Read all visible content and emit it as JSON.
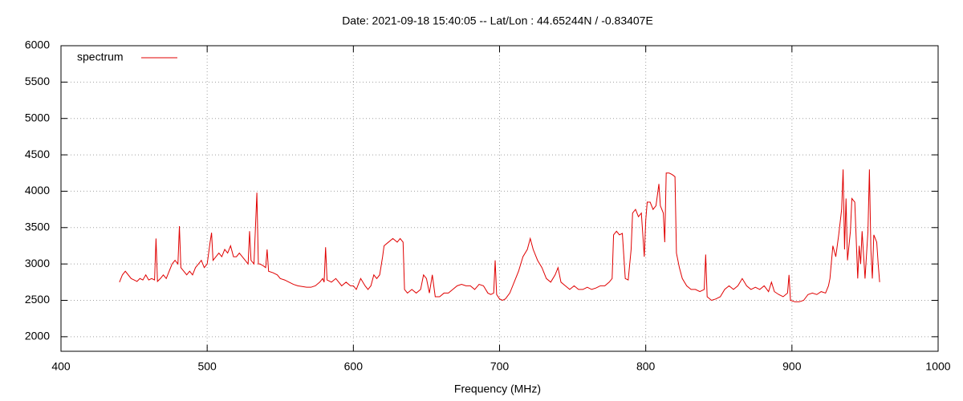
{
  "chart_data": {
    "type": "line",
    "title": "Date: 2021-09-18 15:40:05  --  Lat/Lon : 44.65244N / -0.83407E",
    "x_label": "Frequency (MHz)",
    "xlim": [
      400,
      1000
    ],
    "xticks": [
      400,
      500,
      600,
      700,
      800,
      900,
      1000
    ],
    "ylim": [
      1800,
      6000
    ],
    "yticks": [
      2000,
      2500,
      3000,
      3500,
      4000,
      4500,
      5000,
      5500,
      6000
    ],
    "grid": true,
    "legend": "top-left",
    "x": [
      440,
      442,
      444,
      446,
      448,
      450,
      452,
      454,
      456,
      458,
      460,
      462,
      464,
      465,
      466,
      468,
      470,
      472,
      474,
      476,
      478,
      480,
      481,
      482,
      484,
      486,
      488,
      490,
      492,
      494,
      496,
      498,
      500,
      502,
      503,
      504,
      506,
      508,
      510,
      512,
      514,
      516,
      518,
      520,
      522,
      524,
      526,
      528,
      529,
      530,
      532,
      534,
      535,
      536,
      538,
      540,
      541,
      542,
      545,
      548,
      550,
      553,
      556,
      559,
      562,
      565,
      568,
      571,
      574,
      577,
      579,
      580,
      581,
      582,
      585,
      588,
      590,
      592,
      595,
      598,
      600,
      602,
      605,
      608,
      610,
      612,
      614,
      616,
      618,
      620,
      621,
      624,
      627,
      630,
      632,
      634,
      635,
      637,
      640,
      643,
      646,
      648,
      650,
      652,
      654,
      656,
      659,
      662,
      665,
      668,
      671,
      674,
      677,
      680,
      683,
      686,
      689,
      692,
      694,
      696,
      697,
      698,
      700,
      702,
      704,
      707,
      710,
      713,
      716,
      719,
      721,
      723,
      726,
      729,
      732,
      735,
      738,
      740,
      742,
      745,
      748,
      751,
      754,
      757,
      760,
      763,
      766,
      769,
      772,
      775,
      777,
      778,
      780,
      782,
      784,
      786,
      788,
      790,
      791,
      793,
      795,
      797,
      799,
      800,
      801,
      803,
      805,
      807,
      809,
      810,
      812,
      813,
      814,
      816,
      818,
      820,
      821,
      823,
      825,
      828,
      831,
      834,
      837,
      840,
      841,
      842,
      845,
      848,
      851,
      854,
      857,
      860,
      863,
      866,
      869,
      872,
      875,
      878,
      881,
      884,
      886,
      888,
      891,
      894,
      897,
      898,
      899,
      902,
      905,
      908,
      911,
      914,
      917,
      920,
      923,
      925,
      926,
      928,
      930,
      932,
      934,
      935,
      936,
      937,
      938,
      940,
      941,
      943,
      945,
      946,
      947,
      948,
      950,
      952,
      953,
      954,
      955,
      956,
      958,
      959,
      960
    ],
    "series": [
      {
        "name": "spectrum",
        "color": "#e00000",
        "values": [
          2750,
          2850,
          2900,
          2850,
          2800,
          2780,
          2760,
          2800,
          2780,
          2850,
          2780,
          2800,
          2780,
          3350,
          2760,
          2800,
          2850,
          2800,
          2900,
          3000,
          3050,
          3000,
          3520,
          2950,
          2900,
          2850,
          2900,
          2850,
          2950,
          3000,
          3050,
          2950,
          3000,
          3300,
          3430,
          3050,
          3100,
          3150,
          3100,
          3200,
          3150,
          3250,
          3100,
          3100,
          3150,
          3100,
          3050,
          3000,
          3450,
          3050,
          3000,
          3980,
          3000,
          3000,
          2980,
          2950,
          3200,
          2900,
          2880,
          2850,
          2800,
          2780,
          2750,
          2720,
          2700,
          2690,
          2680,
          2680,
          2700,
          2750,
          2800,
          2750,
          3230,
          2780,
          2750,
          2800,
          2750,
          2700,
          2750,
          2700,
          2700,
          2650,
          2800,
          2700,
          2650,
          2700,
          2850,
          2800,
          2850,
          3100,
          3250,
          3300,
          3350,
          3300,
          3350,
          3300,
          2650,
          2600,
          2650,
          2600,
          2650,
          2850,
          2800,
          2600,
          2850,
          2550,
          2550,
          2600,
          2600,
          2650,
          2700,
          2720,
          2700,
          2700,
          2650,
          2720,
          2700,
          2600,
          2580,
          2600,
          3050,
          2580,
          2520,
          2500,
          2520,
          2600,
          2750,
          2900,
          3100,
          3200,
          3350,
          3200,
          3050,
          2950,
          2800,
          2750,
          2850,
          2950,
          2750,
          2700,
          2650,
          2700,
          2650,
          2650,
          2680,
          2650,
          2670,
          2700,
          2700,
          2750,
          2800,
          3400,
          3450,
          3400,
          3420,
          2800,
          2780,
          3200,
          3700,
          3750,
          3650,
          3700,
          3100,
          3600,
          3850,
          3850,
          3750,
          3800,
          4100,
          3800,
          3700,
          3300,
          4250,
          4250,
          4230,
          4200,
          3150,
          2950,
          2800,
          2700,
          2650,
          2650,
          2620,
          2650,
          3130,
          2550,
          2500,
          2520,
          2550,
          2650,
          2700,
          2650,
          2700,
          2800,
          2700,
          2650,
          2680,
          2650,
          2700,
          2620,
          2750,
          2620,
          2580,
          2550,
          2600,
          2850,
          2500,
          2480,
          2480,
          2500,
          2580,
          2600,
          2580,
          2620,
          2600,
          2700,
          2800,
          3250,
          3100,
          3400,
          3750,
          4300,
          3200,
          3900,
          3050,
          3450,
          3900,
          3850,
          2800,
          3250,
          3000,
          3450,
          2800,
          3450,
          4300,
          3200,
          2800,
          3400,
          3300,
          3000,
          2750
        ]
      }
    ]
  }
}
